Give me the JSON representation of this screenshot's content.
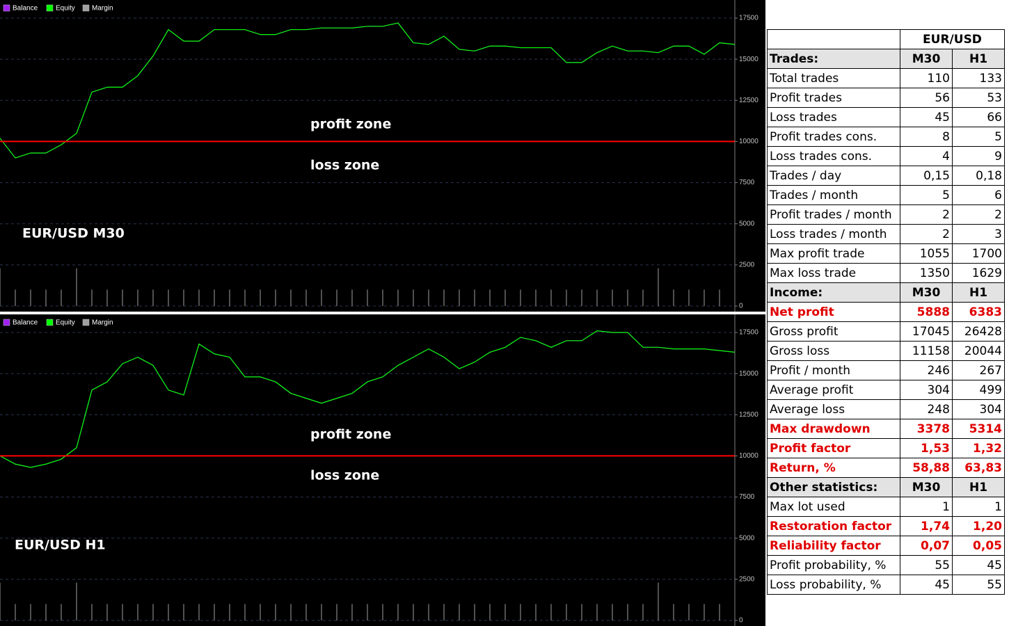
{
  "chart_data": [
    {
      "type": "line",
      "ylim": [
        0,
        17500
      ],
      "yticks": [
        0,
        2500,
        5000,
        7500,
        10000,
        12500,
        15000,
        17500
      ],
      "grid": true,
      "reference_line": {
        "value": 10000,
        "color": "#ff0000"
      },
      "annotations": [
        "profit zone",
        "loss zone",
        "EUR/USD  M30"
      ],
      "categories": [
        null,
        null,
        null,
        null,
        null,
        null,
        null,
        null,
        null,
        null,
        null,
        null,
        null,
        null,
        null,
        null,
        null,
        null,
        null,
        null,
        null,
        null,
        null,
        null,
        null,
        null,
        null,
        null,
        null,
        null,
        null,
        null,
        null,
        null,
        null,
        null,
        null,
        null,
        null,
        null,
        null,
        null,
        null,
        null,
        null,
        null,
        null,
        null,
        null
      ],
      "series": [
        {
          "name": "Balance",
          "color": "#a020f0",
          "style": "line",
          "values": [
            10200,
            9000,
            9300,
            9300,
            9800,
            10500,
            13000,
            13300,
            13300,
            14000,
            15200,
            16800,
            16100,
            16100,
            16800,
            16800,
            16800,
            16500,
            16500,
            16800,
            16800,
            16900,
            16900,
            16900,
            17000,
            17000,
            17200,
            16000,
            15900,
            16400,
            15600,
            15500,
            15800,
            15800,
            15700,
            15700,
            15700,
            14800,
            14800,
            15400,
            15800,
            15500,
            15500,
            15400,
            15800,
            15800,
            15300,
            16000,
            15900
          ]
        },
        {
          "name": "Equity",
          "color": "#00ff00",
          "style": "line",
          "values": [
            10200,
            9000,
            9300,
            9300,
            9800,
            10500,
            13000,
            13300,
            13300,
            14000,
            15200,
            16800,
            16100,
            16100,
            16800,
            16800,
            16800,
            16500,
            16500,
            16800,
            16800,
            16900,
            16900,
            16900,
            17000,
            17000,
            17200,
            16000,
            15900,
            16400,
            15600,
            15500,
            15800,
            15800,
            15700,
            15700,
            15700,
            14800,
            14800,
            15400,
            15800,
            15500,
            15500,
            15400,
            15800,
            15800,
            15300,
            16000,
            15900
          ]
        },
        {
          "name": "Margin",
          "color": "#a0a0a0",
          "style": "spikes",
          "values": [
            2300,
            1000,
            1000,
            1000,
            1000,
            2300,
            1000,
            1000,
            1000,
            1000,
            1000,
            1000,
            1000,
            1000,
            1000,
            1000,
            1000,
            1000,
            1000,
            1000,
            1000,
            1000,
            1000,
            1000,
            1000,
            1000,
            1000,
            1000,
            1000,
            1000,
            1000,
            1000,
            1000,
            1000,
            1000,
            1000,
            1000,
            1000,
            1000,
            1000,
            1000,
            1000,
            1000,
            2300,
            1000,
            1000,
            1000,
            1000,
            0
          ]
        }
      ]
    },
    {
      "type": "line",
      "ylim": [
        0,
        17500
      ],
      "yticks": [
        0,
        2500,
        5000,
        7500,
        10000,
        12500,
        15000,
        17500
      ],
      "grid": true,
      "reference_line": {
        "value": 10000,
        "color": "#ff0000"
      },
      "annotations": [
        "profit zone",
        "loss zone",
        "EUR/USD  H1"
      ],
      "categories": [
        null,
        null,
        null,
        null,
        null,
        null,
        null,
        null,
        null,
        null,
        null,
        null,
        null,
        null,
        null,
        null,
        null,
        null,
        null,
        null,
        null,
        null,
        null,
        null,
        null,
        null,
        null,
        null,
        null,
        null,
        null,
        null,
        null,
        null,
        null,
        null,
        null,
        null,
        null,
        null,
        null,
        null,
        null,
        null,
        null,
        null,
        null,
        null,
        null
      ],
      "series": [
        {
          "name": "Balance",
          "color": "#a020f0",
          "style": "line",
          "values": [
            10000,
            9500,
            9300,
            9500,
            9800,
            10500,
            14000,
            14500,
            15600,
            16000,
            15500,
            14000,
            13700,
            16800,
            16200,
            16000,
            14800,
            14800,
            14500,
            13800,
            13500,
            13200,
            13500,
            13800,
            14500,
            14800,
            15500,
            16000,
            16500,
            16000,
            15300,
            15700,
            16300,
            16600,
            17200,
            17000,
            16600,
            17000,
            17000,
            17600,
            17500,
            17500,
            16600,
            16600,
            16500,
            16500,
            16500,
            16400,
            16300
          ]
        },
        {
          "name": "Equity",
          "color": "#00ff00",
          "style": "line",
          "values": [
            10000,
            9500,
            9300,
            9500,
            9800,
            10500,
            14000,
            14500,
            15600,
            16000,
            15500,
            14000,
            13700,
            16800,
            16200,
            16000,
            14800,
            14800,
            14500,
            13800,
            13500,
            13200,
            13500,
            13800,
            14500,
            14800,
            15500,
            16000,
            16500,
            16000,
            15300,
            15700,
            16300,
            16600,
            17200,
            17000,
            16600,
            17000,
            17000,
            17600,
            17500,
            17500,
            16600,
            16600,
            16500,
            16500,
            16500,
            16400,
            16300
          ]
        },
        {
          "name": "Margin",
          "color": "#a0a0a0",
          "style": "spikes",
          "values": [
            2300,
            1000,
            1000,
            1000,
            1000,
            2300,
            1000,
            1000,
            1000,
            1000,
            1000,
            1000,
            1000,
            1000,
            1000,
            1000,
            1000,
            1000,
            1000,
            1000,
            1000,
            1000,
            1000,
            1000,
            1000,
            1000,
            1000,
            1000,
            1000,
            1000,
            1000,
            1000,
            1000,
            1000,
            1000,
            1000,
            1000,
            1000,
            1000,
            1000,
            1000,
            1000,
            1000,
            2300,
            1000,
            1000,
            1000,
            1000,
            0
          ]
        }
      ]
    }
  ],
  "table": {
    "title": "EUR/USD",
    "sections": [
      {
        "title": "Trades:",
        "columns": [
          "M30",
          "H1"
        ],
        "rows": [
          {
            "label": "Total trades",
            "values": [
              "110",
              "133"
            ]
          },
          {
            "label": "Profit trades",
            "values": [
              "56",
              "53"
            ]
          },
          {
            "label": "Loss trades",
            "values": [
              "45",
              "66"
            ]
          },
          {
            "label": "Profit trades cons.",
            "values": [
              "8",
              "5"
            ]
          },
          {
            "label": "Loss trades cons.",
            "values": [
              "4",
              "9"
            ]
          },
          {
            "label": "Trades / day",
            "values": [
              "0,15",
              "0,18"
            ]
          },
          {
            "label": "Trades / month",
            "values": [
              "5",
              "6"
            ]
          },
          {
            "label": "Profit trades / month",
            "values": [
              "2",
              "2"
            ]
          },
          {
            "label": "Loss trades / month",
            "values": [
              "2",
              "3"
            ]
          },
          {
            "label": "Max profit trade",
            "values": [
              "1055",
              "1700"
            ]
          },
          {
            "label": "Max loss trade",
            "values": [
              "1350",
              "1629"
            ]
          }
        ]
      },
      {
        "title": "Income:",
        "columns": [
          "M30",
          "H1"
        ],
        "rows": [
          {
            "label": "Net profit",
            "values": [
              "5888",
              "6383"
            ],
            "highlight": true
          },
          {
            "label": "Gross profit",
            "values": [
              "17045",
              "26428"
            ]
          },
          {
            "label": "Gross loss",
            "values": [
              "11158",
              "20044"
            ]
          },
          {
            "label": "Profit / month",
            "values": [
              "246",
              "267"
            ]
          },
          {
            "label": "Average profit",
            "values": [
              "304",
              "499"
            ]
          },
          {
            "label": "Average loss",
            "values": [
              "248",
              "304"
            ]
          },
          {
            "label": "Max drawdown",
            "values": [
              "3378",
              "5314"
            ],
            "highlight": true
          },
          {
            "label": "Profit factor",
            "values": [
              "1,53",
              "1,32"
            ],
            "highlight": true
          },
          {
            "label": "Return, %",
            "values": [
              "58,88",
              "63,83"
            ],
            "highlight": true
          }
        ]
      },
      {
        "title": "Other statistics:",
        "columns": [
          "M30",
          "H1"
        ],
        "rows": [
          {
            "label": "Max lot used",
            "values": [
              "1",
              "1"
            ]
          },
          {
            "label": "Restoration factor",
            "values": [
              "1,74",
              "1,20"
            ],
            "highlight": true
          },
          {
            "label": "Reliability factor",
            "values": [
              "0,07",
              "0,05"
            ],
            "highlight": true
          },
          {
            "label": "Profit probability, %",
            "values": [
              "55",
              "45"
            ]
          },
          {
            "label": "Loss probability, %",
            "values": [
              "45",
              "55"
            ]
          }
        ]
      }
    ]
  }
}
